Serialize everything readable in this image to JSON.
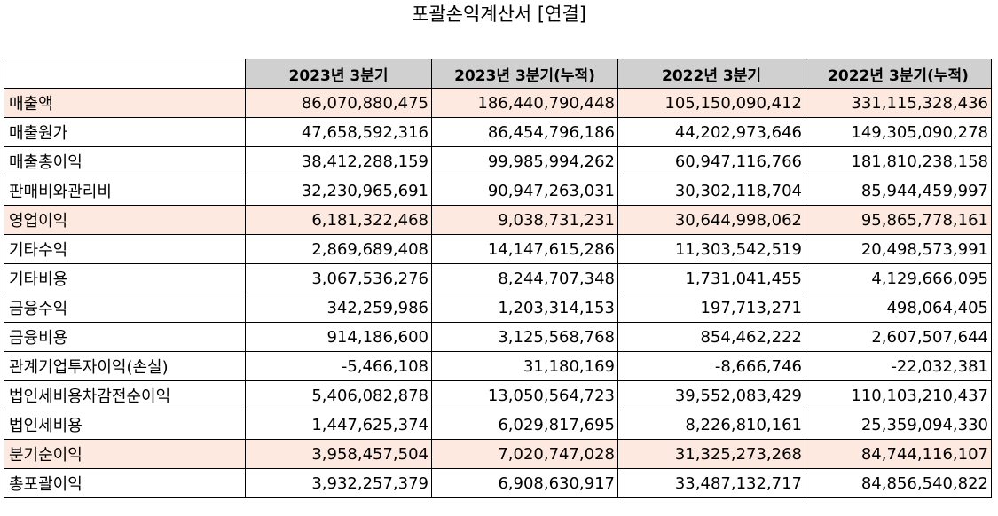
{
  "title": "포괄손익계산서 [연결]",
  "header": {
    "corner": "",
    "columns": [
      "2023년 3분기",
      "2023년 3분기(누적)",
      "2022년 3분기",
      "2022년 3분기(누적)"
    ]
  },
  "highlight_color": "#fde9df",
  "header_color": "#d0d0d0",
  "rows": [
    {
      "label": "매출액",
      "highlight": true,
      "values": [
        "86,070,880,475",
        "186,440,790,448",
        "105,150,090,412",
        "331,115,328,436"
      ]
    },
    {
      "label": "매출원가",
      "highlight": false,
      "values": [
        "47,658,592,316",
        "86,454,796,186",
        "44,202,973,646",
        "149,305,090,278"
      ]
    },
    {
      "label": "매출총이익",
      "highlight": false,
      "values": [
        "38,412,288,159",
        "99,985,994,262",
        "60,947,116,766",
        "181,810,238,158"
      ]
    },
    {
      "label": "판매비와관리비",
      "highlight": false,
      "values": [
        "32,230,965,691",
        "90,947,263,031",
        "30,302,118,704",
        "85,944,459,997"
      ]
    },
    {
      "label": "영업이익",
      "highlight": true,
      "values": [
        "6,181,322,468",
        "9,038,731,231",
        "30,644,998,062",
        "95,865,778,161"
      ]
    },
    {
      "label": "기타수익",
      "highlight": false,
      "values": [
        "2,869,689,408",
        "14,147,615,286",
        "11,303,542,519",
        "20,498,573,991"
      ]
    },
    {
      "label": "기타비용",
      "highlight": false,
      "values": [
        "3,067,536,276",
        "8,244,707,348",
        "1,731,041,455",
        "4,129,666,095"
      ]
    },
    {
      "label": "금융수익",
      "highlight": false,
      "values": [
        "342,259,986",
        "1,203,314,153",
        "197,713,271",
        "498,064,405"
      ]
    },
    {
      "label": "금융비용",
      "highlight": false,
      "values": [
        "914,186,600",
        "3,125,568,768",
        "854,462,222",
        "2,607,507,644"
      ]
    },
    {
      "label": "관계기업투자이익(손실)",
      "highlight": false,
      "values": [
        "-5,466,108",
        "31,180,169",
        "-8,666,746",
        "-22,032,381"
      ]
    },
    {
      "label": "법인세비용차감전순이익",
      "highlight": false,
      "values": [
        "5,406,082,878",
        "13,050,564,723",
        "39,552,083,429",
        "110,103,210,437"
      ]
    },
    {
      "label": "법인세비용",
      "highlight": false,
      "values": [
        "1,447,625,374",
        "6,029,817,695",
        "8,226,810,161",
        "25,359,094,330"
      ]
    },
    {
      "label": "분기순이익",
      "highlight": true,
      "values": [
        "3,958,457,504",
        "7,020,747,028",
        "31,325,273,268",
        "84,744,116,107"
      ]
    },
    {
      "label": "총포괄이익",
      "highlight": false,
      "values": [
        "3,932,257,379",
        "6,908,630,917",
        "33,487,132,717",
        "84,856,540,822"
      ]
    }
  ]
}
